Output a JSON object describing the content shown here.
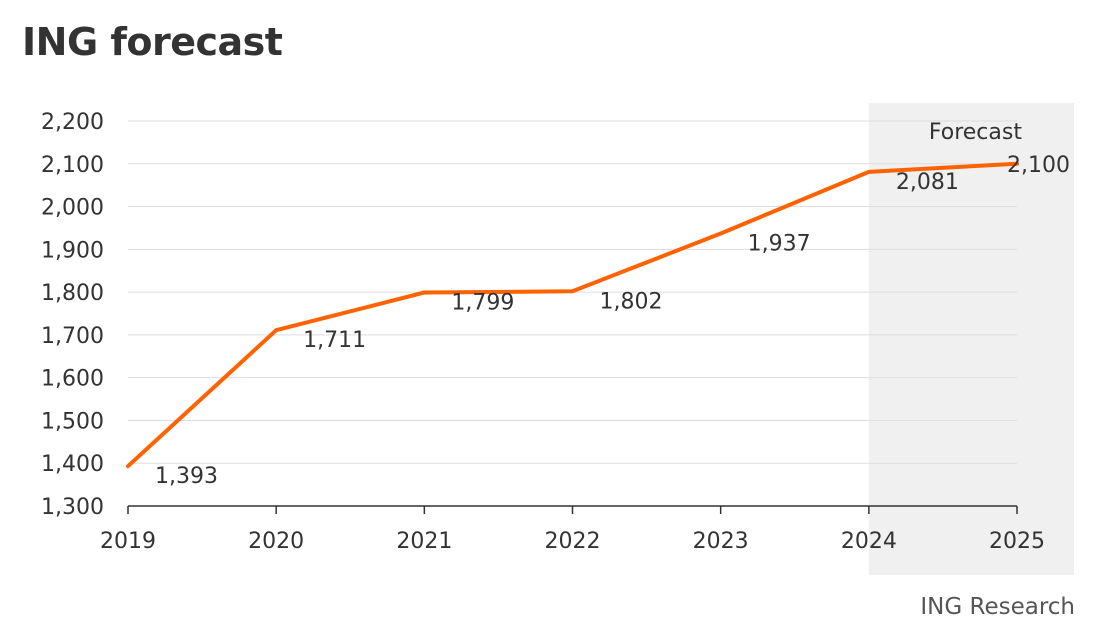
{
  "title": "ING forecast",
  "source": "ING Research",
  "chart_data": {
    "type": "line",
    "x": [
      "2019",
      "2020",
      "2021",
      "2022",
      "2023",
      "2024",
      "2025"
    ],
    "series": [
      {
        "values": [
          1393,
          1711,
          1799,
          1802,
          1937,
          2081,
          2100
        ],
        "labels": [
          "1,393",
          "1,711",
          "1,799",
          "1,802",
          "1,937",
          "2,081",
          "2,100"
        ]
      }
    ],
    "ylim": [
      1300,
      2200
    ],
    "yticks": [
      1300,
      1400,
      1500,
      1600,
      1700,
      1800,
      1900,
      2000,
      2100,
      2200
    ],
    "ytick_labels": [
      "1,300",
      "1,400",
      "1,500",
      "1,600",
      "1,700",
      "1,800",
      "1,900",
      "2,000",
      "2,100",
      "2,200"
    ],
    "grid": true,
    "forecast_band": {
      "label": "Forecast",
      "from": "2024",
      "to": "2025"
    },
    "colors": {
      "line": "#FF6200",
      "band": "#F0F0F0",
      "grid": "#DDDDDD",
      "axis": "#333333"
    }
  }
}
